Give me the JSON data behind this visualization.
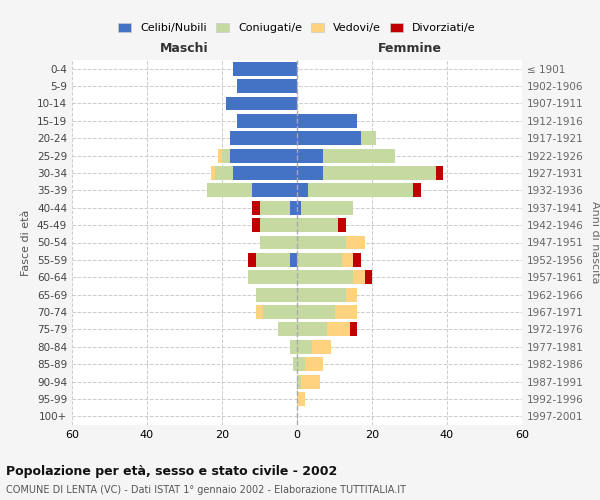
{
  "age_groups": [
    "0-4",
    "5-9",
    "10-14",
    "15-19",
    "20-24",
    "25-29",
    "30-34",
    "35-39",
    "40-44",
    "45-49",
    "50-54",
    "55-59",
    "60-64",
    "65-69",
    "70-74",
    "75-79",
    "80-84",
    "85-89",
    "90-94",
    "95-99",
    "100+"
  ],
  "birth_years": [
    "1997-2001",
    "1992-1996",
    "1987-1991",
    "1982-1986",
    "1977-1981",
    "1972-1976",
    "1967-1971",
    "1962-1966",
    "1957-1961",
    "1952-1956",
    "1947-1951",
    "1942-1946",
    "1937-1941",
    "1932-1936",
    "1927-1931",
    "1922-1926",
    "1917-1921",
    "1912-1916",
    "1907-1911",
    "1902-1906",
    "≤ 1901"
  ],
  "male": {
    "celibi": [
      17,
      16,
      19,
      16,
      18,
      18,
      17,
      12,
      2,
      0,
      0,
      2,
      0,
      0,
      0,
      0,
      0,
      0,
      0,
      0,
      0
    ],
    "coniugati": [
      0,
      0,
      0,
      0,
      0,
      2,
      5,
      12,
      8,
      10,
      10,
      9,
      13,
      11,
      9,
      5,
      2,
      1,
      0,
      0,
      0
    ],
    "vedovi": [
      0,
      0,
      0,
      0,
      0,
      1,
      1,
      0,
      0,
      0,
      0,
      0,
      0,
      0,
      2,
      0,
      0,
      0,
      0,
      0,
      0
    ],
    "divorziati": [
      0,
      0,
      0,
      0,
      0,
      0,
      0,
      0,
      2,
      2,
      0,
      2,
      0,
      0,
      0,
      0,
      0,
      0,
      0,
      0,
      0
    ]
  },
  "female": {
    "nubili": [
      0,
      0,
      0,
      16,
      17,
      7,
      7,
      3,
      1,
      0,
      0,
      0,
      0,
      0,
      0,
      0,
      0,
      0,
      0,
      0,
      0
    ],
    "coniugate": [
      0,
      0,
      0,
      0,
      4,
      19,
      30,
      28,
      14,
      11,
      13,
      12,
      15,
      13,
      10,
      8,
      4,
      2,
      1,
      0,
      0
    ],
    "vedove": [
      0,
      0,
      0,
      0,
      0,
      0,
      0,
      0,
      0,
      0,
      5,
      3,
      3,
      3,
      6,
      6,
      5,
      5,
      5,
      2,
      0
    ],
    "divorziate": [
      0,
      0,
      0,
      0,
      0,
      0,
      2,
      2,
      0,
      2,
      0,
      2,
      2,
      0,
      0,
      2,
      0,
      0,
      0,
      0,
      0
    ]
  },
  "colors": {
    "celibi_nubili": "#4472c4",
    "coniugati": "#c5d9a0",
    "vedovi": "#ffd27f",
    "divorziati": "#c00000"
  },
  "title1": "Popolazione per età, sesso e stato civile - 2002",
  "title2": "COMUNE DI LENTA (VC) - Dati ISTAT 1° gennaio 2002 - Elaborazione TUTTITALIA.IT",
  "xlabel_left": "Maschi",
  "xlabel_right": "Femmine",
  "ylabel_left": "Fasce di età",
  "ylabel_right": "Anni di nascita",
  "xlim": 60,
  "legend_labels": [
    "Celibi/Nubili",
    "Coniugati/e",
    "Vedovi/e",
    "Divorziati/e"
  ],
  "bg_color": "#f5f5f5",
  "plot_bg": "#ffffff",
  "grid_color": "#cccccc"
}
